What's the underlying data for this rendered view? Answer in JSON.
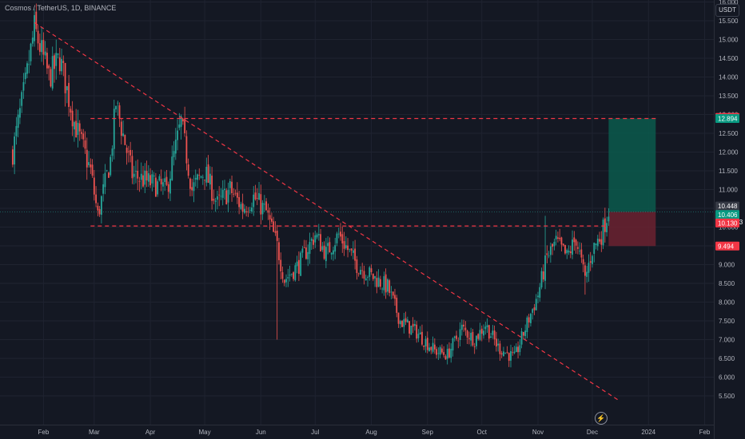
{
  "header": {
    "title": "Cosmos / TetherUS, 1D, BINANCE",
    "unit_button": "USDT"
  },
  "colors": {
    "background": "#141823",
    "up": "#26a69a",
    "down": "#ef5350",
    "grid": "#1f2330",
    "dashed": "#f23645",
    "target_zone": "#0a5a4c",
    "stop_zone": "#6b2230"
  },
  "icons": {
    "bolt": "bolt-icon"
  },
  "chart_data": {
    "type": "candlestick",
    "title": "Cosmos / TetherUS, 1D, BINANCE",
    "ylim": [
      5.3,
      16.2
    ],
    "y_ticks": [
      5.5,
      6.0,
      6.5,
      7.0,
      7.5,
      8.0,
      8.5,
      9.0,
      9.5,
      10.0,
      10.5,
      11.0,
      11.5,
      12.0,
      12.5,
      13.0,
      13.5,
      14.0,
      14.5,
      15.0,
      15.5,
      16.0
    ],
    "x_labels": [
      "Feb",
      "Mar",
      "Apr",
      "May",
      "Jun",
      "Jul",
      "Aug",
      "Sep",
      "Oct",
      "Nov",
      "Dec",
      "2024",
      "Feb"
    ],
    "grid": true,
    "price_path": [
      {
        "date": "2023-01-15",
        "price": 12.0
      },
      {
        "date": "2023-01-22",
        "price": 13.8
      },
      {
        "date": "2023-01-27",
        "price": 15.3
      },
      {
        "date": "2023-02-04",
        "price": 14.0
      },
      {
        "date": "2023-02-10",
        "price": 14.5
      },
      {
        "date": "2023-02-18",
        "price": 12.8
      },
      {
        "date": "2023-02-27",
        "price": 11.5
      },
      {
        "date": "2023-03-03",
        "price": 10.3
      },
      {
        "date": "2023-03-10",
        "price": 11.8
      },
      {
        "date": "2023-03-13",
        "price": 13.3
      },
      {
        "date": "2023-03-22",
        "price": 11.4
      },
      {
        "date": "2023-03-31",
        "price": 11.2
      },
      {
        "date": "2023-04-10",
        "price": 11.0
      },
      {
        "date": "2023-04-18",
        "price": 12.8
      },
      {
        "date": "2023-04-24",
        "price": 11.0
      },
      {
        "date": "2023-05-01",
        "price": 11.5
      },
      {
        "date": "2023-05-08",
        "price": 10.6
      },
      {
        "date": "2023-05-15",
        "price": 11.0
      },
      {
        "date": "2023-05-22",
        "price": 10.5
      },
      {
        "date": "2023-05-28",
        "price": 10.8
      },
      {
        "date": "2023-06-04",
        "price": 10.4
      },
      {
        "date": "2023-06-10",
        "price": 9.5
      },
      {
        "date": "2023-06-14",
        "price": 8.6
      },
      {
        "date": "2023-06-22",
        "price": 9.0
      },
      {
        "date": "2023-07-01",
        "price": 9.8
      },
      {
        "date": "2023-07-07",
        "price": 9.3
      },
      {
        "date": "2023-07-14",
        "price": 9.8
      },
      {
        "date": "2023-07-24",
        "price": 9.0
      },
      {
        "date": "2023-08-01",
        "price": 8.7
      },
      {
        "date": "2023-08-10",
        "price": 8.4
      },
      {
        "date": "2023-08-17",
        "price": 7.5
      },
      {
        "date": "2023-08-26",
        "price": 7.2
      },
      {
        "date": "2023-09-05",
        "price": 6.7
      },
      {
        "date": "2023-09-12",
        "price": 6.6
      },
      {
        "date": "2023-09-20",
        "price": 7.3
      },
      {
        "date": "2023-09-27",
        "price": 7.0
      },
      {
        "date": "2023-10-03",
        "price": 7.4
      },
      {
        "date": "2023-10-10",
        "price": 6.8
      },
      {
        "date": "2023-10-19",
        "price": 6.5
      },
      {
        "date": "2023-10-25",
        "price": 7.3
      },
      {
        "date": "2023-11-01",
        "price": 8.2
      },
      {
        "date": "2023-11-06",
        "price": 9.2
      },
      {
        "date": "2023-11-11",
        "price": 9.6
      },
      {
        "date": "2023-11-17",
        "price": 9.2
      },
      {
        "date": "2023-11-22",
        "price": 9.7
      },
      {
        "date": "2023-11-27",
        "price": 8.6
      },
      {
        "date": "2023-12-01",
        "price": 9.4
      },
      {
        "date": "2023-12-06",
        "price": 9.8
      },
      {
        "date": "2023-12-10",
        "price": 10.45
      }
    ],
    "extreme_wicks": [
      {
        "date": "2023-06-10",
        "low": 7.0
      },
      {
        "date": "2023-11-05",
        "high": 10.3
      },
      {
        "date": "2023-11-27",
        "low": 8.2
      }
    ],
    "trendline": {
      "start": {
        "date": "2023-01-27",
        "price": 15.45
      },
      "end": {
        "date": "2023-12-15",
        "price": 5.4
      }
    },
    "horizontal_levels": [
      {
        "price": 12.894,
        "from": "2023-02-27",
        "to": "2024-01-05"
      },
      {
        "price": 10.03,
        "from": "2023-02-27",
        "to": "2023-12-10"
      }
    ],
    "position": {
      "from": "2023-12-10",
      "to": "2024-01-05",
      "entry": 10.406,
      "target": 12.894,
      "stop": 9.494
    },
    "price_line": 10.406,
    "price_labels": [
      {
        "text": "12.922",
        "price": 12.922,
        "color": "#f23645"
      },
      {
        "text": "12.894",
        "price": 12.894,
        "color": "#089981"
      },
      {
        "text": "10.448",
        "price": 10.56,
        "color": "#363a45"
      },
      {
        "text": "10.406",
        "subtext": "08:04:33",
        "price": 10.335,
        "color": "#089981"
      },
      {
        "text": "10.130",
        "price": 10.11,
        "color": "#f23645"
      },
      {
        "text": "9.494",
        "price": 9.494,
        "color": "#f23645"
      }
    ]
  }
}
